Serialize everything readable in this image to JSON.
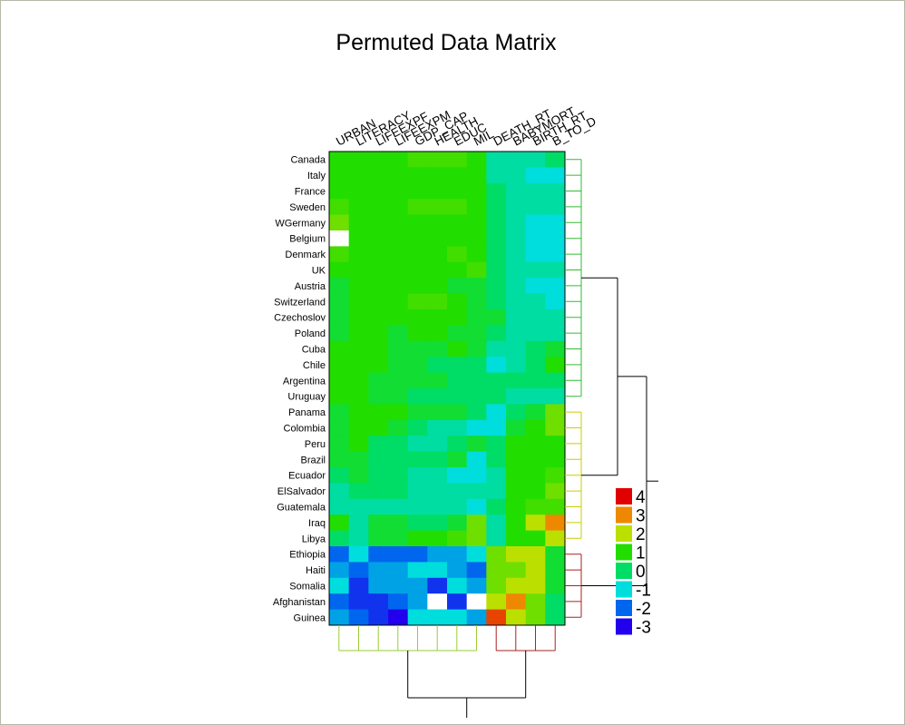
{
  "chart_data": {
    "type": "heatmap",
    "title": "Permuted Data Matrix",
    "columns": [
      "URBAN",
      "LITERACY",
      "LIFEEXPF",
      "LIFEEXPM",
      "GDP_CAP",
      "HEALTH",
      "EDUC",
      "MIL",
      "DEATH_RT",
      "BABYMORT",
      "BIRTH_RT",
      "B_TO_D"
    ],
    "rows": [
      "Canada",
      "Italy",
      "France",
      "Sweden",
      "WGermany",
      "Belgium",
      "Denmark",
      "UK",
      "Austria",
      "Switzerland",
      "Czechoslov",
      "Poland",
      "Cuba",
      "Chile",
      "Argentina",
      "Uruguay",
      "Panama",
      "Colombia",
      "Peru",
      "Brazil",
      "Ecuador",
      "ElSalvador",
      "Guatemala",
      "Iraq",
      "Libya",
      "Ethiopia",
      "Haiti",
      "Somalia",
      "Afghanistan",
      "Guinea"
    ],
    "values": [
      [
        1.0,
        1.0,
        1.0,
        1.0,
        1.2,
        1.2,
        1.2,
        1.0,
        -0.5,
        -0.5,
        -0.5,
        0.0
      ],
      [
        1.0,
        1.0,
        1.0,
        1.0,
        1.0,
        1.0,
        1.0,
        1.0,
        -0.5,
        -0.5,
        -1.0,
        -1.0
      ],
      [
        1.0,
        1.0,
        1.0,
        1.0,
        1.0,
        1.0,
        1.0,
        1.0,
        0.0,
        -0.5,
        -0.5,
        -0.5
      ],
      [
        1.2,
        1.0,
        1.0,
        1.0,
        1.2,
        1.2,
        1.2,
        1.0,
        0.0,
        -0.5,
        -0.5,
        -0.5
      ],
      [
        1.5,
        1.0,
        1.0,
        1.0,
        1.0,
        1.0,
        1.0,
        1.0,
        0.0,
        -0.5,
        -1.0,
        -1.0
      ],
      [
        null,
        1.0,
        1.0,
        1.0,
        1.0,
        1.0,
        1.0,
        1.0,
        0.0,
        -0.5,
        -1.0,
        -1.0
      ],
      [
        1.2,
        1.0,
        1.0,
        1.0,
        1.0,
        1.0,
        1.2,
        1.0,
        0.0,
        -0.5,
        -1.0,
        -1.0
      ],
      [
        1.0,
        1.0,
        1.0,
        1.0,
        1.0,
        1.0,
        1.0,
        1.2,
        0.0,
        -0.5,
        -0.5,
        -0.5
      ],
      [
        0.5,
        1.0,
        1.0,
        1.0,
        1.0,
        1.0,
        0.5,
        0.5,
        0.0,
        -0.5,
        -1.0,
        -1.0
      ],
      [
        0.5,
        1.0,
        1.0,
        1.0,
        1.2,
        1.2,
        1.0,
        0.5,
        0.0,
        -0.5,
        -0.5,
        -1.0
      ],
      [
        0.5,
        1.0,
        1.0,
        1.0,
        1.0,
        1.0,
        1.0,
        0.5,
        0.5,
        -0.5,
        -0.5,
        -0.5
      ],
      [
        0.5,
        1.0,
        1.0,
        0.5,
        1.0,
        1.0,
        0.5,
        0.5,
        0.0,
        -0.5,
        -0.5,
        -0.5
      ],
      [
        1.0,
        1.0,
        1.0,
        0.5,
        0.5,
        0.5,
        1.0,
        0.5,
        -0.5,
        -0.5,
        0.0,
        0.5
      ],
      [
        1.0,
        1.0,
        1.0,
        0.5,
        0.5,
        0.0,
        0.0,
        0.0,
        -1.0,
        -0.5,
        0.0,
        1.0
      ],
      [
        1.0,
        1.0,
        0.5,
        0.5,
        0.5,
        0.5,
        0.0,
        0.0,
        0.0,
        0.0,
        0.0,
        0.0
      ],
      [
        1.0,
        1.0,
        0.5,
        0.5,
        0.0,
        0.0,
        0.0,
        0.0,
        0.0,
        -0.5,
        -0.5,
        -0.5
      ],
      [
        0.5,
        1.0,
        1.0,
        1.0,
        0.5,
        0.5,
        0.5,
        0.0,
        -1.0,
        0.0,
        0.5,
        1.5
      ],
      [
        0.5,
        1.0,
        1.0,
        0.5,
        0.0,
        -0.5,
        -0.5,
        -1.0,
        -1.0,
        0.5,
        1.0,
        1.5
      ],
      [
        0.5,
        1.0,
        0.0,
        0.0,
        -0.5,
        -0.5,
        0.0,
        0.5,
        0.0,
        1.0,
        1.0,
        1.0
      ],
      [
        0.5,
        0.5,
        0.0,
        0.0,
        0.0,
        0.0,
        0.5,
        -1.0,
        0.0,
        1.0,
        1.0,
        1.0
      ],
      [
        0.0,
        0.5,
        0.0,
        0.0,
        -0.5,
        -0.5,
        -1.0,
        -1.0,
        -0.5,
        1.0,
        1.0,
        1.2
      ],
      [
        -0.5,
        0.0,
        0.0,
        0.0,
        -0.5,
        -0.5,
        -0.5,
        -0.5,
        -0.5,
        1.0,
        1.0,
        1.5
      ],
      [
        -0.5,
        -0.5,
        -0.5,
        -0.5,
        -0.5,
        -0.5,
        -0.5,
        -1.0,
        0.0,
        1.0,
        1.2,
        1.2
      ],
      [
        1.0,
        -0.5,
        0.5,
        0.5,
        0.0,
        0.0,
        0.5,
        1.5,
        -0.5,
        1.0,
        2.0,
        3.0
      ],
      [
        0.0,
        -0.5,
        0.5,
        0.5,
        1.0,
        1.0,
        1.2,
        1.5,
        -0.5,
        1.0,
        1.0,
        2.0
      ],
      [
        -2.0,
        -1.0,
        -2.0,
        -2.0,
        -2.0,
        -1.5,
        -1.5,
        -1.0,
        1.5,
        2.0,
        2.0,
        0.5
      ],
      [
        -1.5,
        -2.0,
        -1.5,
        -1.5,
        -1.0,
        -1.0,
        -1.5,
        -2.0,
        1.5,
        1.5,
        2.0,
        0.5
      ],
      [
        -1.0,
        -2.5,
        -1.5,
        -1.5,
        -1.5,
        -2.5,
        -1.0,
        -1.5,
        1.5,
        2.0,
        2.0,
        0.5
      ],
      [
        -2.0,
        -2.5,
        -2.5,
        -2.0,
        -1.5,
        null,
        -2.5,
        null,
        2.0,
        3.0,
        1.5,
        0.0
      ],
      [
        -1.5,
        -2.0,
        -2.5,
        -3.0,
        -1.0,
        -1.0,
        -1.0,
        -1.5,
        3.5,
        2.0,
        1.5,
        0.0
      ]
    ],
    "legend": {
      "position": "right",
      "levels": [
        4,
        3,
        2,
        1,
        0,
        -1,
        -2,
        -3
      ],
      "labels": [
        "4",
        "3",
        "2",
        "1",
        "0",
        "-1",
        "-2",
        "-3"
      ],
      "colors": [
        "#e00000",
        "#ee8800",
        "#bbe000",
        "#22dd00",
        "#00dd66",
        "#00dddd",
        "#0066ee",
        "#2200ee"
      ]
    },
    "missing_color": "#ffffff",
    "row_dendrogram": {
      "groups": [
        {
          "rows": [
            0,
            15
          ],
          "color": "#33bb33"
        },
        {
          "rows": [
            16,
            24
          ],
          "color": "#cccc00"
        },
        {
          "rows": [
            25,
            29
          ],
          "color": "#aa2222"
        }
      ]
    },
    "column_dendrogram": {
      "groups": [
        {
          "cols": [
            0,
            7
          ],
          "color": "#99cc33"
        },
        {
          "cols": [
            8,
            11
          ],
          "color": "#aa2222"
        }
      ]
    }
  }
}
